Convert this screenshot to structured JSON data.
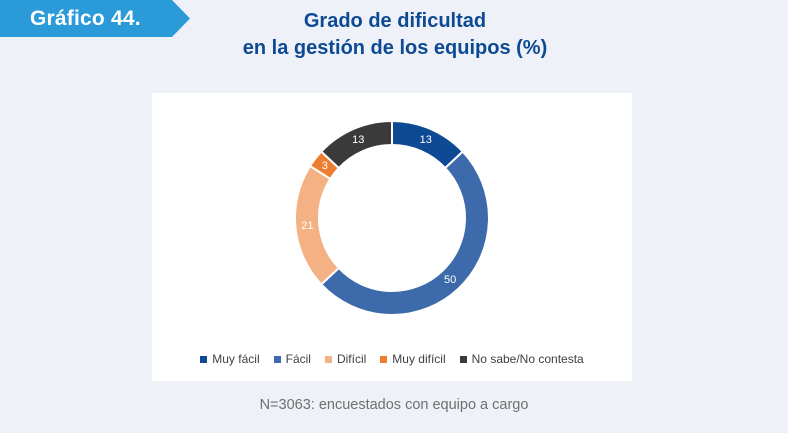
{
  "badge": {
    "label": "Gráfico 44.",
    "color": "#2a9bd8"
  },
  "title": {
    "line1": "Grado de dificultad",
    "line2": "en la gestión de los equipos (%)"
  },
  "chart_data": {
    "type": "pie",
    "variant": "donut",
    "categories": [
      "Muy fácil",
      "Fácil",
      "Difícil",
      "Muy difícil",
      "No sabe/No contesta"
    ],
    "values": [
      13,
      50,
      21,
      3,
      13
    ],
    "colors": [
      "#0d4a93",
      "#3d6aaa",
      "#f4b183",
      "#ed7d31",
      "#3a3a3a"
    ],
    "data_labels": [
      "13",
      "50",
      "21",
      "3",
      "13"
    ],
    "legend_position": "bottom",
    "start_angle_deg": 0,
    "direction": "clockwise"
  },
  "footnote": "N=3063: encuestados con equipo a cargo"
}
